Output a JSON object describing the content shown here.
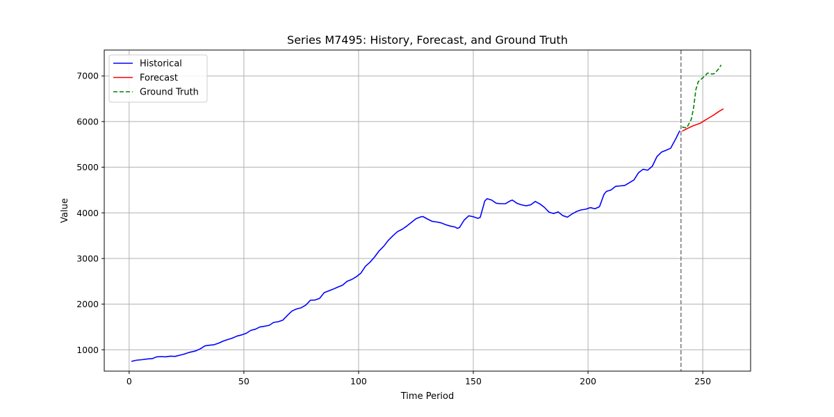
{
  "chart_data": {
    "type": "line",
    "title": "Series M7495: History, Forecast, and Ground Truth",
    "xlabel": "Time Period",
    "ylabel": "Value",
    "xlim": [
      -10.85,
      270.85
    ],
    "ylim": [
      532,
      7567
    ],
    "xticks": [
      0,
      50,
      100,
      150,
      200,
      250
    ],
    "yticks": [
      1000,
      2000,
      3000,
      4000,
      5000,
      6000,
      7000
    ],
    "grid": true,
    "legend_position": "top-left",
    "forecast_start": 240.5,
    "series": [
      {
        "name": "Historical",
        "color": "#0000ff",
        "style": "solid",
        "points": [
          [
            1,
            745
          ],
          [
            3,
            770
          ],
          [
            6,
            785
          ],
          [
            8,
            800
          ],
          [
            10,
            805
          ],
          [
            12,
            845
          ],
          [
            14,
            850
          ],
          [
            16,
            845
          ],
          [
            18,
            860
          ],
          [
            20,
            855
          ],
          [
            22,
            880
          ],
          [
            24,
            905
          ],
          [
            26,
            940
          ],
          [
            29,
            975
          ],
          [
            31,
            1020
          ],
          [
            33,
            1085
          ],
          [
            35,
            1100
          ],
          [
            37,
            1110
          ],
          [
            39,
            1145
          ],
          [
            41,
            1190
          ],
          [
            43,
            1225
          ],
          [
            45,
            1255
          ],
          [
            47,
            1300
          ],
          [
            49,
            1325
          ],
          [
            51,
            1360
          ],
          [
            53,
            1425
          ],
          [
            55,
            1450
          ],
          [
            57,
            1500
          ],
          [
            59,
            1515
          ],
          [
            61,
            1535
          ],
          [
            63,
            1600
          ],
          [
            65,
            1615
          ],
          [
            67,
            1650
          ],
          [
            69,
            1755
          ],
          [
            71,
            1850
          ],
          [
            73,
            1895
          ],
          [
            75,
            1920
          ],
          [
            77,
            1980
          ],
          [
            79,
            2085
          ],
          [
            81,
            2090
          ],
          [
            83,
            2125
          ],
          [
            85,
            2250
          ],
          [
            87,
            2290
          ],
          [
            89,
            2330
          ],
          [
            91,
            2375
          ],
          [
            93,
            2415
          ],
          [
            95,
            2500
          ],
          [
            97,
            2540
          ],
          [
            99,
            2600
          ],
          [
            101,
            2680
          ],
          [
            103,
            2830
          ],
          [
            105,
            2920
          ],
          [
            107,
            3035
          ],
          [
            109,
            3170
          ],
          [
            111,
            3270
          ],
          [
            113,
            3400
          ],
          [
            115,
            3500
          ],
          [
            117,
            3590
          ],
          [
            119,
            3640
          ],
          [
            121,
            3710
          ],
          [
            123,
            3790
          ],
          [
            125,
            3870
          ],
          [
            127,
            3910
          ],
          [
            128,
            3920
          ],
          [
            130,
            3865
          ],
          [
            132,
            3815
          ],
          [
            134,
            3800
          ],
          [
            136,
            3780
          ],
          [
            138,
            3740
          ],
          [
            140,
            3710
          ],
          [
            142,
            3690
          ],
          [
            143,
            3660
          ],
          [
            144,
            3680
          ],
          [
            146,
            3840
          ],
          [
            148,
            3935
          ],
          [
            150,
            3915
          ],
          [
            152,
            3880
          ],
          [
            153,
            3900
          ],
          [
            155,
            4260
          ],
          [
            156,
            4310
          ],
          [
            158,
            4280
          ],
          [
            160,
            4210
          ],
          [
            162,
            4200
          ],
          [
            164,
            4200
          ],
          [
            166,
            4260
          ],
          [
            167,
            4280
          ],
          [
            169,
            4210
          ],
          [
            171,
            4175
          ],
          [
            173,
            4155
          ],
          [
            175,
            4175
          ],
          [
            177,
            4250
          ],
          [
            179,
            4195
          ],
          [
            181,
            4120
          ],
          [
            183,
            4015
          ],
          [
            185,
            3985
          ],
          [
            187,
            4020
          ],
          [
            189,
            3940
          ],
          [
            191,
            3905
          ],
          [
            193,
            3975
          ],
          [
            195,
            4030
          ],
          [
            197,
            4065
          ],
          [
            199,
            4080
          ],
          [
            201,
            4115
          ],
          [
            203,
            4090
          ],
          [
            205,
            4135
          ],
          [
            207,
            4410
          ],
          [
            208,
            4470
          ],
          [
            210,
            4500
          ],
          [
            212,
            4580
          ],
          [
            214,
            4590
          ],
          [
            216,
            4600
          ],
          [
            218,
            4660
          ],
          [
            220,
            4720
          ],
          [
            222,
            4880
          ],
          [
            224,
            4955
          ],
          [
            226,
            4935
          ],
          [
            228,
            5020
          ],
          [
            230,
            5230
          ],
          [
            232,
            5330
          ],
          [
            234,
            5370
          ],
          [
            236,
            5415
          ],
          [
            238,
            5600
          ],
          [
            240,
            5800
          ]
        ]
      },
      {
        "name": "Forecast",
        "color": "#ff0000",
        "style": "solid",
        "points": [
          [
            241,
            5790
          ],
          [
            243,
            5840
          ],
          [
            245,
            5890
          ],
          [
            247,
            5930
          ],
          [
            249,
            5965
          ],
          [
            251,
            6030
          ],
          [
            253,
            6090
          ],
          [
            255,
            6150
          ],
          [
            257,
            6220
          ],
          [
            259,
            6280
          ]
        ]
      },
      {
        "name": "Ground Truth",
        "color": "#008000",
        "style": "dashed",
        "points": [
          [
            241,
            5880
          ],
          [
            243,
            5860
          ],
          [
            245,
            6050
          ],
          [
            246,
            6300
          ],
          [
            247,
            6700
          ],
          [
            248,
            6870
          ],
          [
            250,
            6960
          ],
          [
            251,
            7000
          ],
          [
            252,
            7060
          ],
          [
            253,
            7060
          ],
          [
            254,
            7040
          ],
          [
            255,
            7050
          ],
          [
            256,
            7100
          ],
          [
            257,
            7160
          ],
          [
            258,
            7240
          ]
        ]
      }
    ]
  }
}
